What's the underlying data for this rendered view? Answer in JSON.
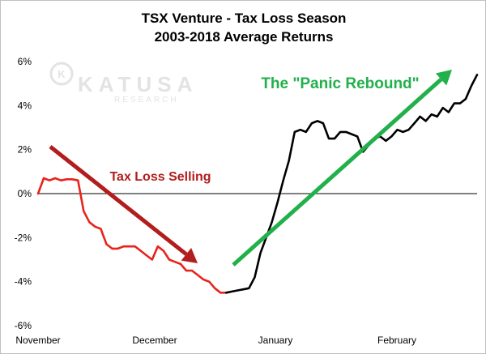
{
  "chart_data": {
    "type": "line",
    "title": "TSX Venture - Tax Loss Season",
    "subtitle": "2003-2018 Average Returns",
    "xlabel": "",
    "ylabel": "",
    "x_tick_labels": [
      "November",
      "December",
      "January",
      "February"
    ],
    "y_ticks": [
      6,
      4,
      2,
      0,
      -2,
      -4,
      -6
    ],
    "y_tick_labels": [
      "6%",
      "4%",
      "2%",
      "0%",
      "-2%",
      "-4%",
      "-6%"
    ],
    "ylim": [
      -6,
      6
    ],
    "grid": false,
    "zero_line": true,
    "series": [
      {
        "color": "#e8231c",
        "values": [
          0.0,
          0.7,
          0.6,
          0.7,
          0.6,
          0.65,
          0.65,
          0.6,
          -0.8,
          -1.3,
          -1.5,
          -1.6,
          -2.3,
          -2.5,
          -2.5,
          -2.4,
          -2.4,
          -2.4,
          -2.6,
          -2.8,
          -3.0,
          -2.4,
          -2.6,
          -3.0,
          -3.1,
          -3.2,
          -3.5,
          -3.5,
          -3.7,
          -3.9,
          -4.0,
          -4.3,
          -4.5,
          -4.5
        ]
      },
      {
        "color": "#000000",
        "values": [
          -4.5,
          -4.45,
          -4.4,
          -4.35,
          -4.3,
          -3.8,
          -2.7,
          -2.0,
          -1.3,
          -0.4,
          0.6,
          1.5,
          2.8,
          2.9,
          2.8,
          3.2,
          3.3,
          3.2,
          2.5,
          2.5,
          2.8,
          2.8,
          2.7,
          2.6,
          1.9,
          2.2,
          2.5,
          2.6,
          2.4,
          2.6,
          2.9,
          2.8,
          2.9,
          3.2,
          3.5,
          3.3,
          3.6,
          3.5,
          3.9,
          3.7,
          4.1,
          4.1,
          4.3,
          4.9,
          5.4
        ]
      }
    ],
    "annotations": [
      {
        "text": "Tax Loss Selling",
        "color": "#b21d1d"
      },
      {
        "text": "The \"Panic Rebound\"",
        "color": "#22b04b"
      }
    ]
  },
  "watermark": {
    "brand": "KATUSA",
    "sub": "RESEARCH",
    "badge": "K",
    "color": "#e3e3e3"
  }
}
